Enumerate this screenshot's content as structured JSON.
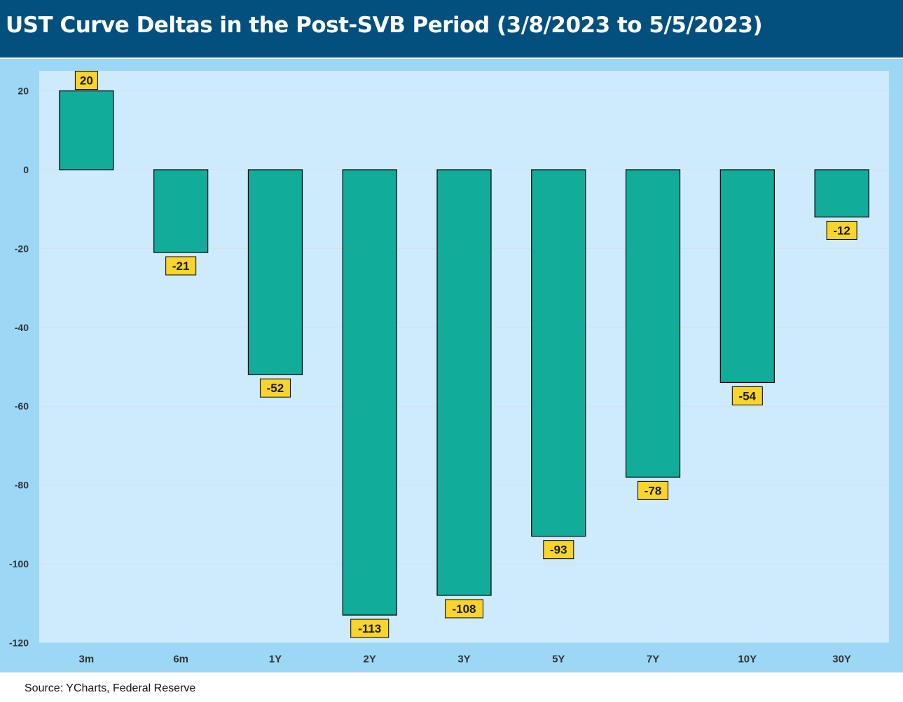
{
  "header": {
    "title": "UST Curve Deltas in the Post-SVB Period (3/8/2023 to 5/5/2023)"
  },
  "footer": {
    "source": "Source: YCharts, Federal Reserve"
  },
  "colors": {
    "header_bg": "#03507f",
    "chart_bg": "#9dd7f6",
    "plot_bg": "#cdebfc",
    "bar": "#11ac9a",
    "label_bg": "#f9d42a"
  },
  "chart_data": {
    "type": "bar",
    "title": "UST Curve Deltas in the Post-SVB Period (3/8/2023 to 5/5/2023)",
    "categories": [
      "3m",
      "6m",
      "1Y",
      "2Y",
      "3Y",
      "5Y",
      "7Y",
      "10Y",
      "30Y"
    ],
    "values": [
      20,
      -21,
      -52,
      -113,
      -108,
      -93,
      -78,
      -54,
      -12
    ],
    "ylim": [
      -120,
      20
    ],
    "yticks": [
      20,
      0,
      -20,
      -40,
      -60,
      -80,
      -100,
      -120
    ],
    "xlabel": "",
    "ylabel": "",
    "grid": true,
    "legend": "none"
  }
}
